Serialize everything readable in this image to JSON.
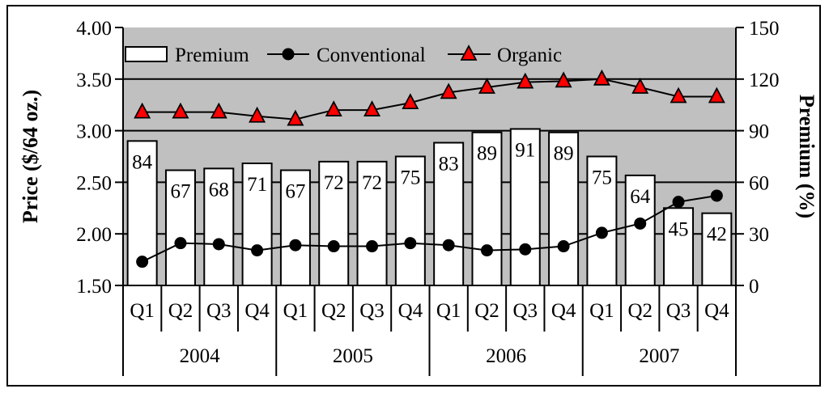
{
  "chart_data": {
    "type": "bar+line",
    "title": "",
    "categories": [
      "Q1",
      "Q2",
      "Q3",
      "Q4",
      "Q1",
      "Q2",
      "Q3",
      "Q4",
      "Q1",
      "Q2",
      "Q3",
      "Q4",
      "Q1",
      "Q2",
      "Q3",
      "Q4"
    ],
    "groups": [
      "2004",
      "2005",
      "2006",
      "2007"
    ],
    "ylabel_left": "Price ($/64 oz.)",
    "ylabel_right": "Premium (%)",
    "ylim_left": [
      1.5,
      4.0
    ],
    "yticks_left": [
      "1.50",
      "2.00",
      "2.50",
      "3.00",
      "3.50",
      "4.00"
    ],
    "ylim_right": [
      0,
      150
    ],
    "yticks_right": [
      "0",
      "30",
      "60",
      "90",
      "120",
      "150"
    ],
    "grid": true,
    "legend_position": "top-inside",
    "series": [
      {
        "name": "Premium",
        "type": "bar",
        "axis": "right",
        "values": [
          84,
          67,
          68,
          71,
          67,
          72,
          72,
          75,
          83,
          89,
          91,
          89,
          75,
          64,
          45,
          42
        ]
      },
      {
        "name": "Conventional",
        "type": "line",
        "marker": "circle",
        "axis": "left",
        "values": [
          1.73,
          1.91,
          1.9,
          1.84,
          1.89,
          1.88,
          1.88,
          1.91,
          1.89,
          1.84,
          1.85,
          1.88,
          2.01,
          2.1,
          2.31,
          2.37
        ]
      },
      {
        "name": "Organic",
        "type": "line",
        "marker": "triangle",
        "axis": "left",
        "values": [
          3.18,
          3.18,
          3.18,
          3.14,
          3.11,
          3.2,
          3.2,
          3.27,
          3.37,
          3.42,
          3.47,
          3.48,
          3.5,
          3.42,
          3.33,
          3.33
        ]
      }
    ]
  },
  "colors": {
    "plot_bg": "#c0c0c0",
    "bar_fill": "#ffffff",
    "organic_marker": "#ff0000",
    "line": "#000000"
  }
}
